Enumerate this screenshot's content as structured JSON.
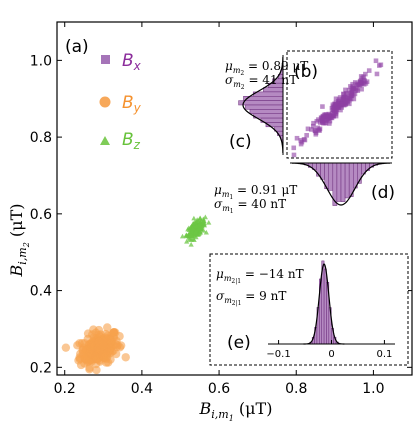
{
  "chart_data": [
    {
      "type": "scatter",
      "panel": "(a)",
      "xlabel": "B_{i,m1} (μT)",
      "ylabel": "B_{i,m2} (μT)",
      "xlim": [
        0.18,
        1.1
      ],
      "ylim": [
        0.18,
        1.1
      ],
      "xticks": [
        "0.2",
        "0.4",
        "0.6",
        "0.8",
        "1.0"
      ],
      "yticks": [
        "0.2",
        "0.4",
        "0.6",
        "0.8",
        "1.0"
      ],
      "legend_position": "top-left",
      "series": [
        {
          "name": "B_x",
          "marker": "square",
          "color": "#8b2c9b",
          "center": [
            0.9,
            0.89
          ],
          "spread": [
            0.04,
            0.041
          ],
          "correlation": 0.97,
          "count": 200
        },
        {
          "name": "B_y",
          "marker": "circle",
          "color": "#f5922f",
          "center": [
            0.29,
            0.25
          ],
          "spread": [
            0.025,
            0.022
          ],
          "correlation": 0.3,
          "count": 220
        },
        {
          "name": "B_z",
          "marker": "triangle",
          "color": "#67c23a",
          "center": [
            0.54,
            0.56
          ],
          "spread": [
            0.012,
            0.012
          ],
          "correlation": 0.6,
          "count": 180
        }
      ]
    },
    {
      "type": "scatter",
      "panel": "(b)",
      "description_series": "B_x",
      "axes_ticks": false,
      "color": "#8b2c9b"
    },
    {
      "type": "histogram",
      "panel": "(c)",
      "orientation": "horizontal",
      "stat_lines": [
        "μ_{m2} = 0.89 μT",
        "σ_{m2} = 41 nT"
      ],
      "mean": 0.89,
      "sigma": 0.041,
      "color": "#8b2c9b"
    },
    {
      "type": "histogram",
      "panel": "(d)",
      "orientation": "vertical-down",
      "stat_lines": [
        "μ_{m1} = 0.91 μT",
        "σ_{m1} = 40 nT"
      ],
      "mean": 0.91,
      "sigma": 0.04,
      "color": "#8b2c9b"
    },
    {
      "type": "histogram",
      "panel": "(e)",
      "stat_lines": [
        "μ_{m2|1} = −14 nT",
        "σ_{m2|1} = 9 nT"
      ],
      "mean": -0.014,
      "sigma": 0.009,
      "xticks": [
        "−0.1",
        "0",
        "0.1"
      ],
      "xlim": [
        -0.12,
        0.12
      ],
      "color": "#8b2c9b"
    }
  ],
  "labels": {
    "panel_a": "(a)",
    "panel_b": "(b)",
    "panel_c": "(c)",
    "panel_d": "(d)",
    "panel_e": "(e)",
    "legend_bx": "B",
    "legend_bx_sub": "x",
    "legend_by": "B",
    "legend_by_sub": "y",
    "legend_bz": "B",
    "legend_bz_sub": "z",
    "ylabel_main": "B",
    "ylabel_sub": "i,m",
    "ylabel_subsub": "2",
    "ylabel_unit": " (μT)",
    "xlabel_main": "B",
    "xlabel_sub": "i,m",
    "xlabel_subsub": "1",
    "xlabel_unit": " (μT)",
    "c_mu_sym": "μ",
    "c_mu_sub": "m",
    "c_mu_subsub": "2",
    "c_mu_val": " = 0.89 μT",
    "c_sig_sym": "σ",
    "c_sig_sub": "m",
    "c_sig_subsub": "2",
    "c_sig_val": " = 41 nT",
    "d_mu_sym": "μ",
    "d_mu_sub": "m",
    "d_mu_subsub": "1",
    "d_mu_val": " = 0.91 μT",
    "d_sig_sym": "σ",
    "d_sig_sub": "m",
    "d_sig_subsub": "1",
    "d_sig_val": " = 40 nT",
    "e_mu_sym": "μ",
    "e_mu_sub": "m",
    "e_mu_subsub": "2|1",
    "e_mu_val": " = −14 nT",
    "e_sig_sym": "σ",
    "e_sig_sub": "m",
    "e_sig_subsub": "2|1",
    "e_sig_val": " = 9 nT",
    "tick_x": [
      "0.2",
      "0.4",
      "0.6",
      "0.8",
      "1.0"
    ],
    "tick_y": [
      "0.2",
      "0.4",
      "0.6",
      "0.8",
      "1.0"
    ],
    "tick_e": [
      "−0.1",
      "0",
      "0.1"
    ]
  }
}
